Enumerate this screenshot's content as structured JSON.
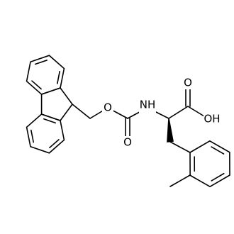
{
  "atoms": [
    {
      "label": "O"
    },
    {
      "label": "NH"
    },
    {
      "label": "O"
    },
    {
      "label": "O"
    },
    {
      "label": "OH"
    }
  ]
}
